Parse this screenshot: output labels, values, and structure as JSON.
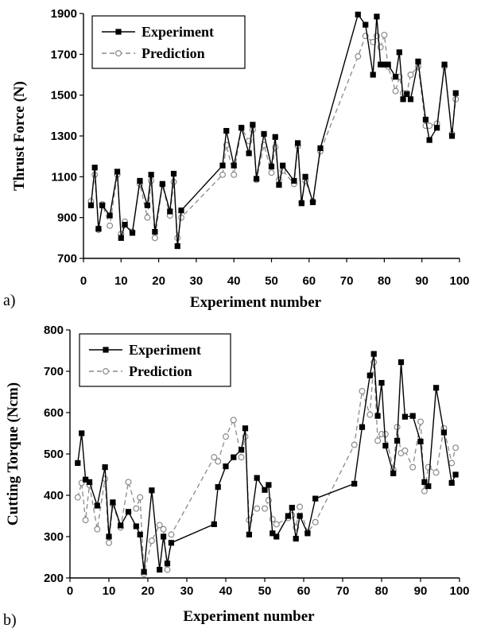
{
  "chart_data": [
    {
      "type": "line",
      "panel_label": "a)",
      "xlabel": "Experiment number",
      "ylabel": "Thrust Force (N)",
      "xlim": [
        0,
        100
      ],
      "ylim": [
        700,
        1900
      ],
      "xticks": [
        "0",
        "10",
        "20",
        "30",
        "40",
        "50",
        "60",
        "70",
        "80",
        "90",
        "100"
      ],
      "yticks": [
        "700",
        "900",
        "1100",
        "1300",
        "1500",
        "1700",
        "1900"
      ],
      "legend_position": "top-left",
      "series": [
        {
          "name": "Experiment",
          "style": "solid",
          "marker": "filled-square",
          "color": "#000000",
          "x": [
            2,
            3,
            4,
            5,
            7,
            9,
            10,
            11,
            13,
            15,
            17,
            18,
            19,
            21,
            23,
            24,
            25,
            26,
            37,
            38,
            40,
            42,
            44,
            45,
            46,
            48,
            50,
            51,
            52,
            53,
            56,
            57,
            58,
            59,
            61,
            63,
            73,
            75,
            77,
            78,
            79,
            80,
            81,
            83,
            84,
            85,
            86,
            87,
            89,
            91,
            92,
            94,
            96,
            98,
            99
          ],
          "y": [
            960,
            1145,
            845,
            960,
            910,
            1125,
            800,
            865,
            825,
            1080,
            960,
            1110,
            830,
            1065,
            930,
            1115,
            760,
            935,
            1155,
            1325,
            1155,
            1340,
            1215,
            1355,
            1090,
            1310,
            1150,
            1295,
            1060,
            1155,
            1080,
            1265,
            970,
            1100,
            975,
            1240,
            1895,
            1845,
            1600,
            1885,
            1650,
            1650,
            1650,
            1590,
            1710,
            1480,
            1505,
            1480,
            1665,
            1380,
            1280,
            1340,
            1650,
            1300,
            1510
          ]
        },
        {
          "name": "Prediction",
          "style": "dashed",
          "marker": "open-circle",
          "color": "#8a8a8a",
          "x": [
            2,
            3,
            4,
            5,
            7,
            9,
            10,
            11,
            13,
            15,
            17,
            18,
            19,
            21,
            23,
            24,
            25,
            26,
            37,
            38,
            40,
            42,
            44,
            45,
            46,
            48,
            50,
            51,
            52,
            53,
            56,
            57,
            58,
            59,
            61,
            63,
            73,
            75,
            77,
            78,
            79,
            80,
            81,
            83,
            84,
            85,
            86,
            87,
            89,
            91,
            92,
            94,
            96,
            98,
            99
          ],
          "y": [
            980,
            1110,
            840,
            965,
            860,
            1110,
            820,
            880,
            830,
            1065,
            900,
            1080,
            800,
            1060,
            910,
            1075,
            800,
            900,
            1110,
            1255,
            1110,
            1340,
            1275,
            1330,
            1085,
            1255,
            1120,
            1245,
            1085,
            1130,
            1065,
            1250,
            975,
            1080,
            980,
            1225,
            1690,
            1790,
            1760,
            1790,
            1735,
            1795,
            1640,
            1520,
            1590,
            1510,
            1510,
            1600,
            1640,
            1350,
            1350,
            1360,
            1640,
            1310,
            1480
          ]
        }
      ]
    },
    {
      "type": "line",
      "panel_label": "b)",
      "xlabel": "Experiment number",
      "ylabel": "Cutting Torque (Ncm)",
      "xlim": [
        0,
        100
      ],
      "ylim": [
        200,
        800
      ],
      "xticks": [
        "0",
        "10",
        "20",
        "30",
        "40",
        "50",
        "60",
        "70",
        "80",
        "90",
        "100"
      ],
      "yticks": [
        "200",
        "300",
        "400",
        "500",
        "600",
        "700",
        "800"
      ],
      "legend_position": "top-left",
      "series": [
        {
          "name": "Experiment",
          "style": "solid",
          "marker": "filled-square",
          "color": "#000000",
          "x": [
            2,
            3,
            4,
            5,
            7,
            9,
            10,
            11,
            13,
            15,
            17,
            18,
            19,
            21,
            23,
            24,
            25,
            26,
            37,
            38,
            40,
            42,
            44,
            45,
            46,
            48,
            50,
            51,
            52,
            53,
            56,
            57,
            58,
            59,
            61,
            63,
            73,
            75,
            77,
            78,
            79,
            80,
            81,
            83,
            84,
            85,
            86,
            88,
            90,
            91,
            92,
            94,
            96,
            98,
            99
          ],
          "y": [
            478,
            550,
            438,
            432,
            375,
            468,
            300,
            383,
            327,
            360,
            325,
            305,
            215,
            412,
            220,
            300,
            235,
            285,
            330,
            420,
            470,
            492,
            510,
            562,
            305,
            442,
            413,
            425,
            308,
            300,
            350,
            370,
            295,
            350,
            308,
            392,
            428,
            565,
            690,
            742,
            592,
            672,
            520,
            453,
            532,
            722,
            590,
            592,
            530,
            432,
            422,
            660,
            552,
            430,
            450
          ]
        },
        {
          "name": "Prediction",
          "style": "dashed",
          "marker": "open-circle",
          "color": "#8a8a8a",
          "x": [
            2,
            3,
            4,
            5,
            7,
            9,
            10,
            11,
            13,
            15,
            17,
            18,
            19,
            21,
            23,
            24,
            25,
            26,
            37,
            38,
            40,
            42,
            44,
            45,
            46,
            48,
            50,
            51,
            52,
            53,
            56,
            57,
            58,
            59,
            61,
            63,
            73,
            75,
            77,
            78,
            79,
            80,
            81,
            83,
            84,
            85,
            86,
            88,
            90,
            91,
            92,
            94,
            96,
            98,
            99
          ],
          "y": [
            395,
            430,
            340,
            425,
            318,
            440,
            285,
            378,
            322,
            432,
            368,
            395,
            210,
            290,
            328,
            318,
            220,
            305,
            492,
            482,
            542,
            582,
            492,
            542,
            340,
            368,
            368,
            388,
            342,
            330,
            345,
            352,
            322,
            372,
            310,
            335,
            522,
            652,
            595,
            722,
            532,
            548,
            548,
            462,
            565,
            502,
            508,
            468,
            578,
            410,
            468,
            455,
            562,
            478,
            515
          ]
        }
      ]
    }
  ]
}
